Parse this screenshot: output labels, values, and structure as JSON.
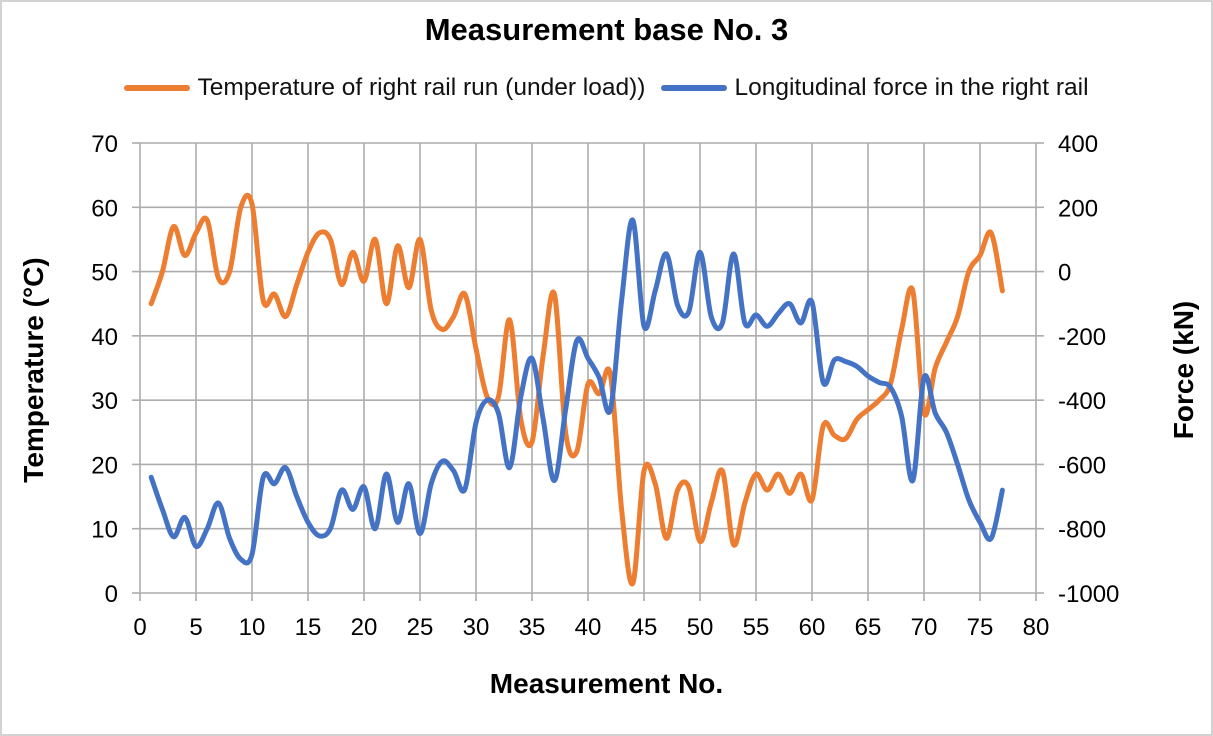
{
  "chart_data": {
    "type": "line",
    "title": "Measurement base No. 3",
    "xlabel": "Measurement No.",
    "ylabel_left": "Temperature (°C)",
    "ylabel_right": "Force (kN)",
    "grid": true,
    "legend_position": "top",
    "x_axis": {
      "min": 0,
      "max": 80,
      "step": 5,
      "ticks": [
        0,
        5,
        10,
        15,
        20,
        25,
        30,
        35,
        40,
        45,
        50,
        55,
        60,
        65,
        70,
        75,
        80
      ]
    },
    "y_left_axis": {
      "min": 0,
      "max": 70,
      "step": 10,
      "ticks": [
        70,
        60,
        50,
        40,
        30,
        20,
        10,
        0
      ]
    },
    "y_right_axis": {
      "min": -1000,
      "max": 400,
      "step": 200,
      "ticks": [
        400,
        200,
        0,
        -200,
        -400,
        -600,
        -800,
        -1000
      ]
    },
    "colors": {
      "temperature": "#ED7D31",
      "force": "#4472C4",
      "gridline": "#ACACAC",
      "text": "#000000",
      "border": "#D2D2D2"
    },
    "x": [
      1,
      2,
      3,
      4,
      5,
      6,
      7,
      8,
      9,
      10,
      11,
      12,
      13,
      14,
      15,
      16,
      17,
      18,
      19,
      20,
      21,
      22,
      23,
      24,
      25,
      26,
      27,
      28,
      29,
      30,
      31,
      32,
      33,
      34,
      35,
      36,
      37,
      38,
      39,
      40,
      41,
      42,
      43,
      44,
      45,
      46,
      47,
      48,
      49,
      50,
      51,
      52,
      53,
      54,
      55,
      56,
      57,
      58,
      59,
      60,
      61,
      62,
      63,
      64,
      65,
      66,
      67,
      68,
      69,
      70,
      71,
      72,
      73,
      74,
      75,
      76,
      77
    ],
    "series": [
      {
        "name": "Temperature of right rail run (under load))",
        "axis": "left",
        "color_key": "temperature",
        "values": [
          45,
          50,
          57,
          52.5,
          56,
          58,
          49,
          50,
          60,
          60.5,
          45.5,
          46.5,
          43,
          48,
          53,
          56,
          55,
          48,
          53,
          48.5,
          55,
          45,
          54,
          47.5,
          55,
          44,
          41,
          43,
          46.5,
          38,
          30.5,
          30.5,
          42.5,
          27,
          23.5,
          37,
          46.5,
          25,
          22,
          32.5,
          31,
          34,
          13,
          1.5,
          19,
          17,
          8.5,
          16,
          16.5,
          8,
          14,
          19,
          7.5,
          14,
          18.5,
          16,
          18.5,
          15.5,
          18.5,
          14.5,
          26,
          24.5,
          24,
          27,
          28.5,
          30,
          32.5,
          41,
          47,
          28,
          35,
          39,
          43,
          50,
          52.5,
          56,
          47
        ]
      },
      {
        "name": "Longitudinal force in the right rail",
        "axis": "right",
        "color_key": "force",
        "values": [
          -640,
          -740,
          -825,
          -765,
          -855,
          -800,
          -720,
          -830,
          -895,
          -880,
          -640,
          -660,
          -610,
          -700,
          -780,
          -822,
          -800,
          -680,
          -740,
          -670,
          -800,
          -630,
          -780,
          -660,
          -815,
          -660,
          -590,
          -620,
          -678,
          -470,
          -400,
          -440,
          -610,
          -390,
          -270,
          -460,
          -650,
          -430,
          -215,
          -270,
          -330,
          -430,
          -90,
          160,
          -170,
          -60,
          55,
          -105,
          -125,
          60,
          -140,
          -160,
          55,
          -160,
          -135,
          -170,
          -130,
          -100,
          -160,
          -95,
          -345,
          -275,
          -280,
          -295,
          -325,
          -345,
          -360,
          -450,
          -650,
          -330,
          -440,
          -500,
          -600,
          -710,
          -780,
          -830,
          -680
        ]
      }
    ]
  }
}
